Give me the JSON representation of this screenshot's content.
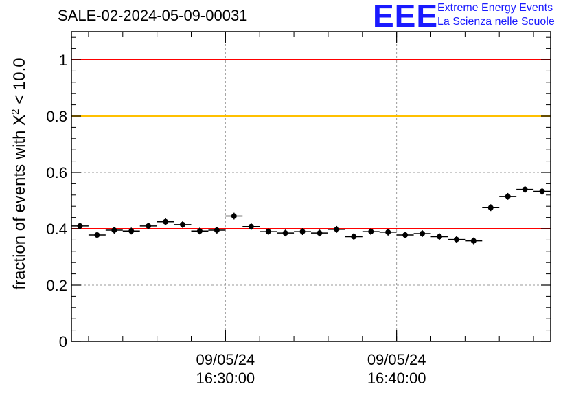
{
  "chart_data": {
    "type": "scatter",
    "title": "SALE-02-2024-05-09-00031",
    "ylabel_main": "fraction of events with X",
    "ylabel_sup": "2",
    "ylabel_tail": "< 10.0",
    "xlabel": "",
    "ylim": [
      0,
      1.1
    ],
    "xlim_minutes": [
      -9,
      19
    ],
    "y_ticks": [
      {
        "v": 0,
        "label": "0"
      },
      {
        "v": 0.2,
        "label": "0.2"
      },
      {
        "v": 0.4,
        "label": "0.4"
      },
      {
        "v": 0.6,
        "label": "0.6"
      },
      {
        "v": 0.8,
        "label": "0.8"
      },
      {
        "v": 1,
        "label": "1"
      }
    ],
    "x_labels": [
      {
        "minutes": 0,
        "date": "09/05/24",
        "time": "16:30:00"
      },
      {
        "minutes": 10,
        "date": "09/05/24",
        "time": "16:40:00"
      }
    ],
    "grid": true,
    "reference_lines": [
      {
        "y": 1.0,
        "color": "#ff0000"
      },
      {
        "y": 0.8,
        "color": "#ffc000"
      },
      {
        "y": 0.4,
        "color": "#ff0000"
      }
    ],
    "points": [
      {
        "x": -8.5,
        "y": 0.41
      },
      {
        "x": -7.5,
        "y": 0.378
      },
      {
        "x": -6.5,
        "y": 0.395
      },
      {
        "x": -5.5,
        "y": 0.392
      },
      {
        "x": -4.5,
        "y": 0.41
      },
      {
        "x": -3.5,
        "y": 0.425
      },
      {
        "x": -2.5,
        "y": 0.415
      },
      {
        "x": -1.5,
        "y": 0.392
      },
      {
        "x": -0.5,
        "y": 0.395
      },
      {
        "x": 0.5,
        "y": 0.445
      },
      {
        "x": 1.5,
        "y": 0.408
      },
      {
        "x": 2.5,
        "y": 0.39
      },
      {
        "x": 3.5,
        "y": 0.385
      },
      {
        "x": 4.5,
        "y": 0.39
      },
      {
        "x": 5.5,
        "y": 0.385
      },
      {
        "x": 6.5,
        "y": 0.398
      },
      {
        "x": 7.5,
        "y": 0.372
      },
      {
        "x": 8.5,
        "y": 0.39
      },
      {
        "x": 9.5,
        "y": 0.388
      },
      {
        "x": 10.5,
        "y": 0.378
      },
      {
        "x": 11.5,
        "y": 0.383
      },
      {
        "x": 12.5,
        "y": 0.372
      },
      {
        "x": 13.5,
        "y": 0.362
      },
      {
        "x": 14.5,
        "y": 0.357
      },
      {
        "x": 15.5,
        "y": 0.475
      },
      {
        "x": 16.5,
        "y": 0.515
      },
      {
        "x": 17.5,
        "y": 0.54
      },
      {
        "x": 18.5,
        "y": 0.533
      }
    ],
    "y_error": 0.012,
    "x_half_width_minutes": 0.5
  },
  "logo": {
    "mark": "EEE",
    "line1": "Extreme Energy Events",
    "line2": "La Scienza nelle Scuole",
    "color": "#1a1aff"
  }
}
